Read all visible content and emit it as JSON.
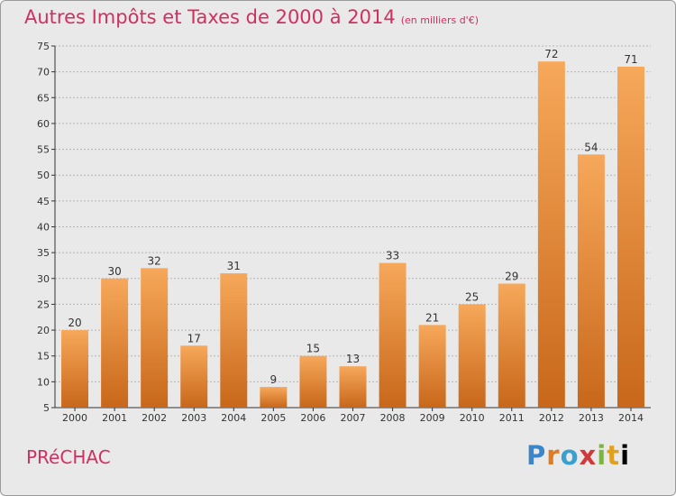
{
  "header": {
    "title": "Autres Impôts et Taxes de 2000 à 2014",
    "unit": "(en milliers d'€)"
  },
  "footer": {
    "commune": "PRéCHAC",
    "logo": [
      "P",
      "r",
      "o",
      "x",
      "i",
      "t",
      "i"
    ]
  },
  "colors": {
    "title": "#d03060",
    "bar_light": "#f7a85a",
    "bar_dark": "#c8671a",
    "grid": "#b5b5b5",
    "background": "#e9e9e9"
  },
  "chart_data": {
    "type": "bar",
    "title": "Autres Impôts et Taxes de 2000 à 2014",
    "subtitle": "(en milliers d'€)",
    "xlabel": "",
    "ylabel": "",
    "categories": [
      "2000",
      "2001",
      "2002",
      "2003",
      "2004",
      "2005",
      "2006",
      "2007",
      "2008",
      "2009",
      "2010",
      "2011",
      "2012",
      "2013",
      "2014"
    ],
    "values": [
      20,
      30,
      32,
      17,
      31,
      9,
      15,
      13,
      33,
      21,
      25,
      29,
      72,
      54,
      71
    ],
    "ylim": [
      5,
      75
    ],
    "yticks": [
      5,
      10,
      15,
      20,
      25,
      30,
      35,
      40,
      45,
      50,
      55,
      60,
      65,
      70,
      75
    ],
    "grid": true,
    "legend": "none"
  }
}
